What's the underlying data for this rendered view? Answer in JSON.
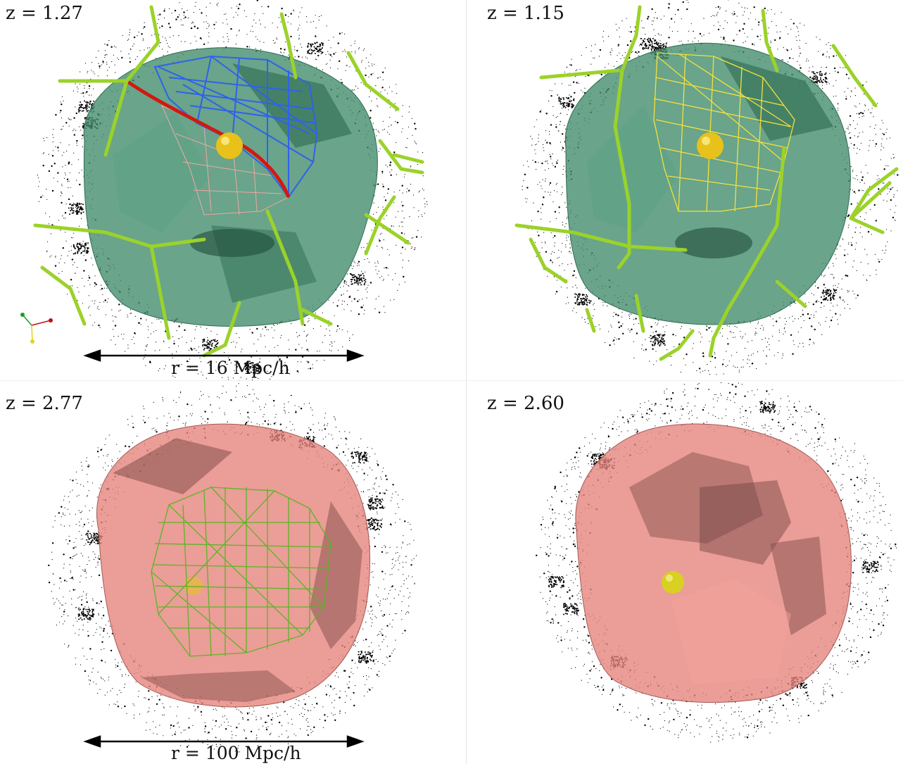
{
  "panels": [
    {
      "label": "z = 1.27"
    },
    {
      "label": "z = 1.15"
    },
    {
      "label": "z = 2.77"
    },
    {
      "label": "z = 2.60"
    }
  ],
  "scale_bars": [
    {
      "text": "r = 16 Mpc/h"
    },
    {
      "text": "r = 100 Mpc/h"
    }
  ],
  "colors": {
    "void_surface_green": "#3f8a6a",
    "void_surface_red": "#e6817a",
    "filament": "#9bd22a",
    "sphere": "#e8c21a",
    "mesh_blue": "#2f62ea",
    "mesh_pink": "#f0a9a0",
    "mesh_yellow": "#f4e23a",
    "mesh_green": "#5bb526",
    "spine_red": "#d01a10",
    "particles": "#000000"
  },
  "axis_triad_colors": [
    "#18a020",
    "#c01010",
    "#e8d020"
  ]
}
